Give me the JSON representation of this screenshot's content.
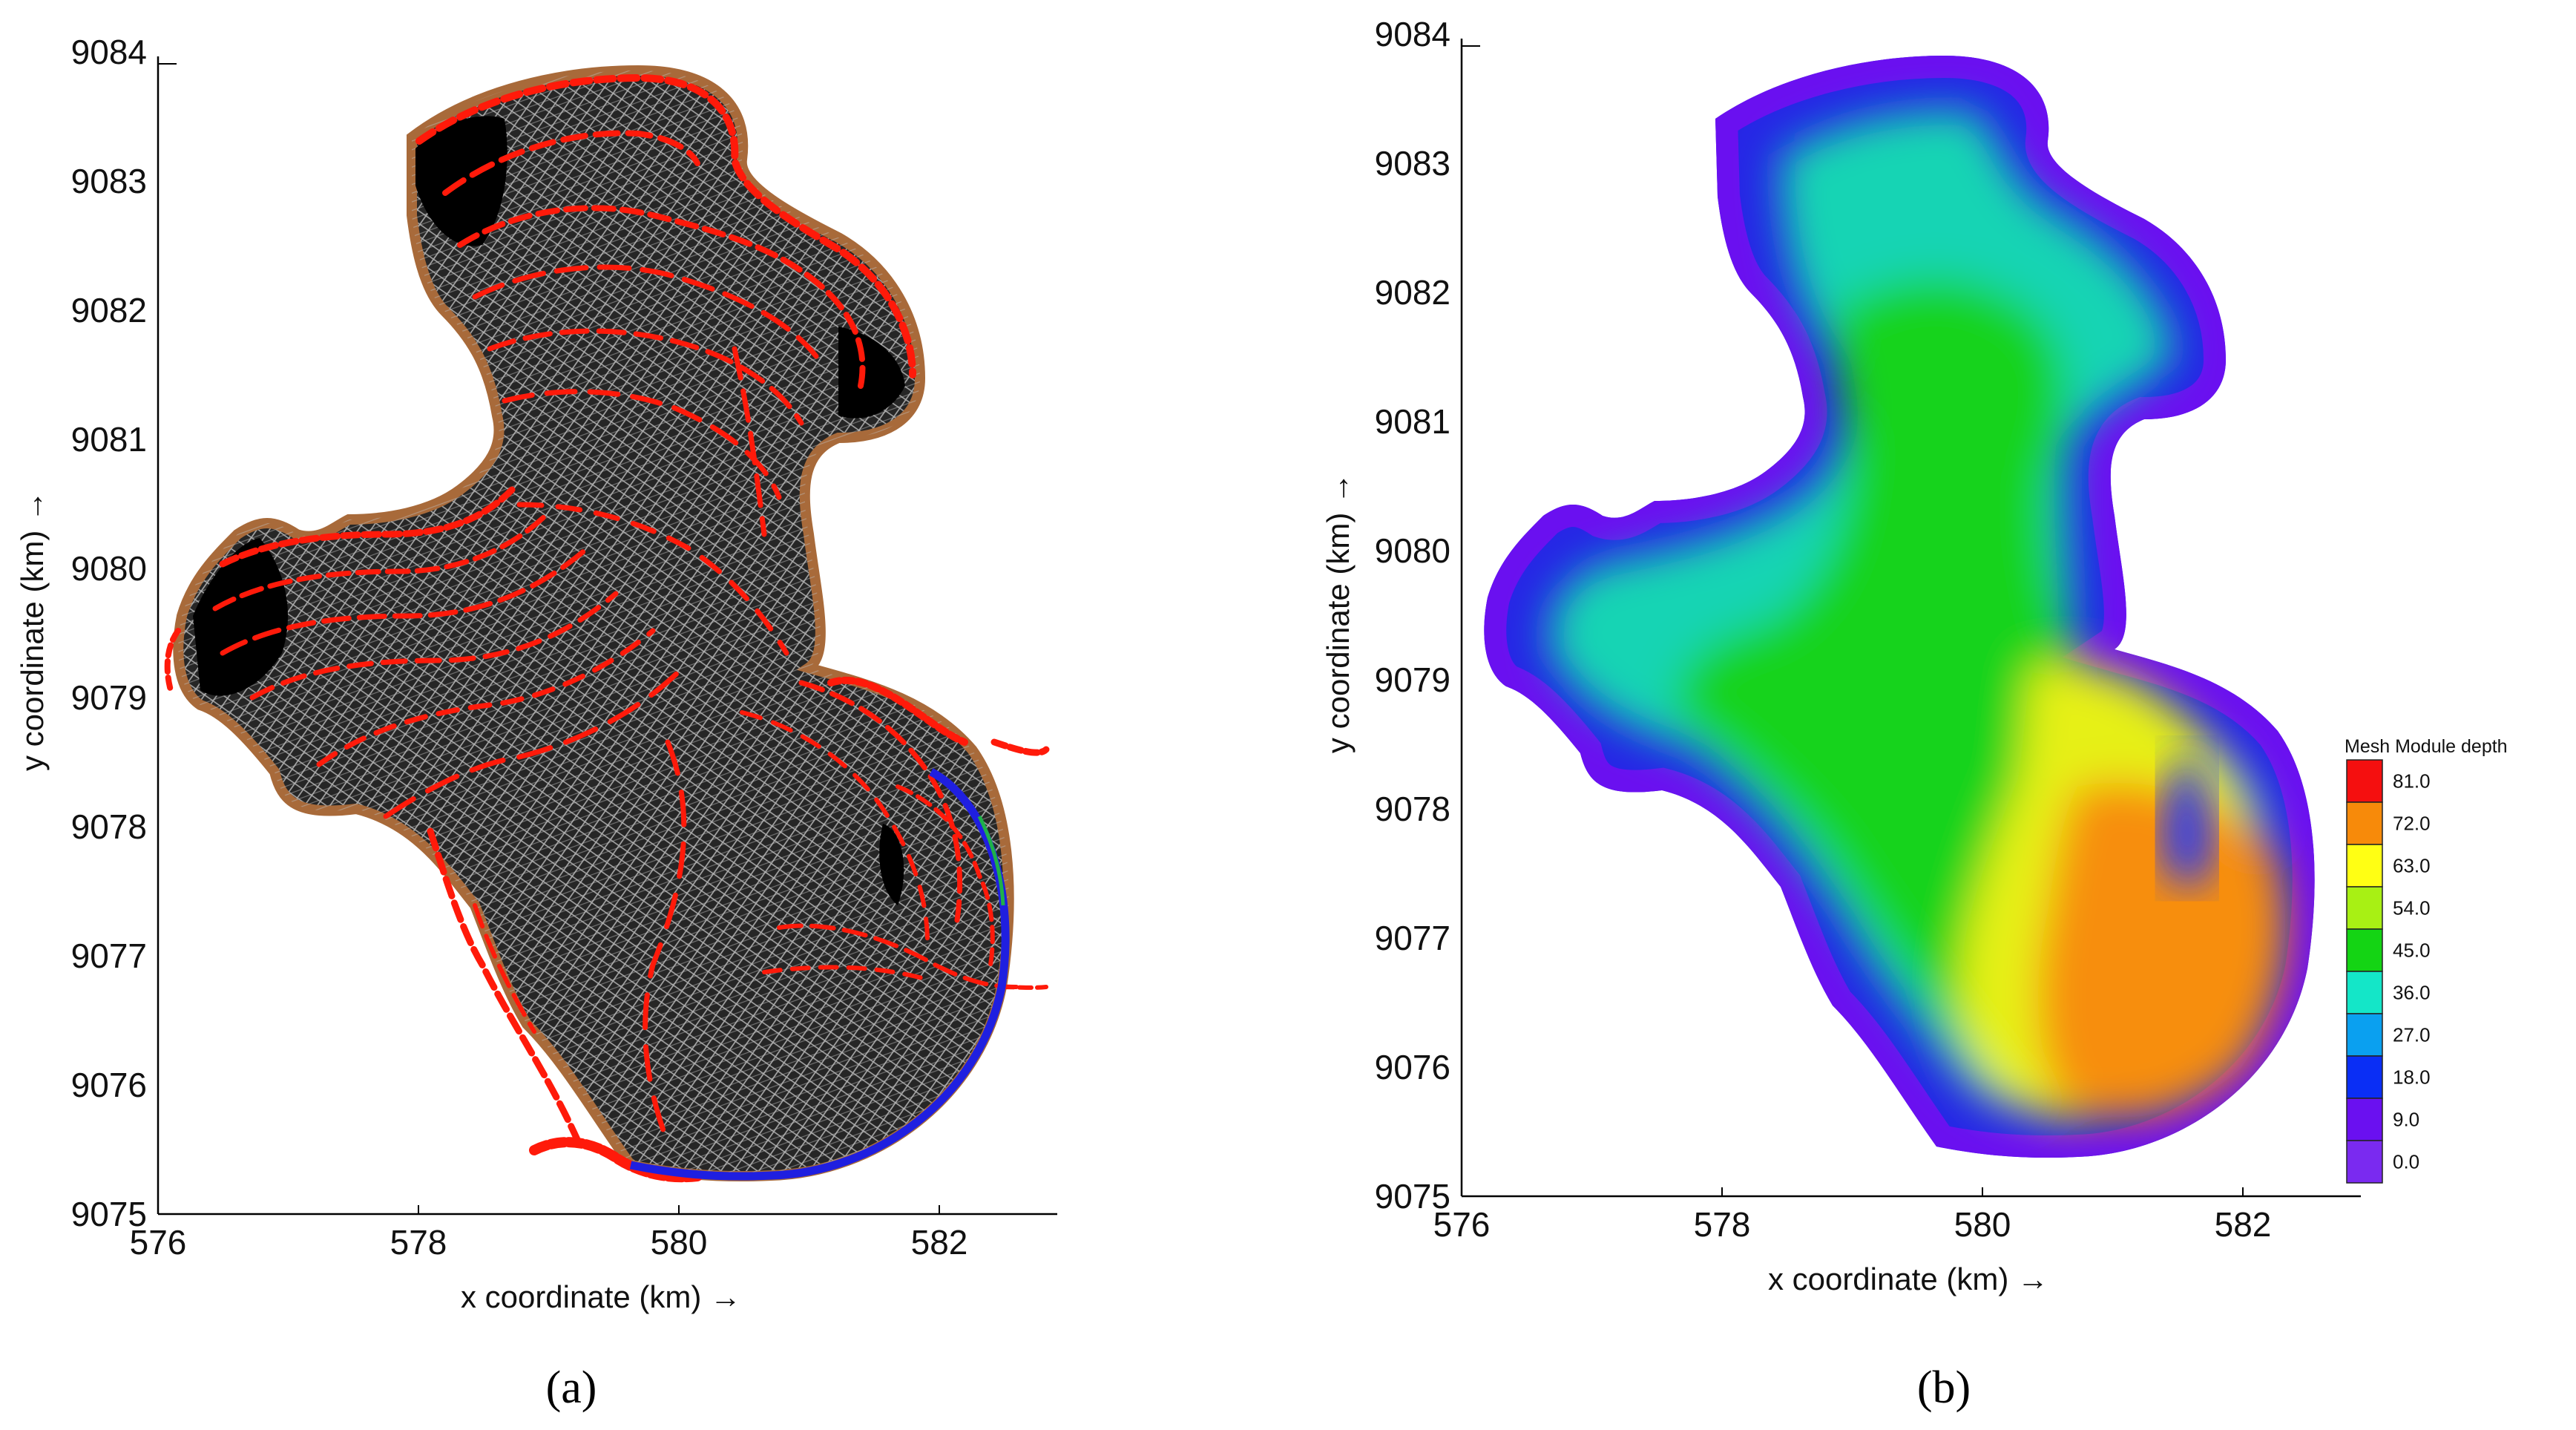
{
  "panel_a": {
    "caption": "(a)",
    "xlabel": "x coordinate (km) →",
    "ylabel": "y coordinate (km) →",
    "xticks": [
      "576",
      "578",
      "580",
      "582"
    ],
    "yticks": [
      "9075",
      "9076",
      "9077",
      "9078",
      "9079",
      "9080",
      "9081",
      "9082",
      "9083",
      "9084"
    ],
    "colors": {
      "mesh": "#2a2a2a",
      "mesh_dense": "#000000",
      "lines": "#ff1a0a",
      "shore": "#a86a3a",
      "open_boundary": "#1f1fe0"
    }
  },
  "panel_b": {
    "caption": "(b)",
    "xlabel": "x coordinate (km) →",
    "ylabel": "y coordinate (km) →",
    "xticks": [
      "576",
      "578",
      "580",
      "582"
    ],
    "yticks": [
      "9075",
      "9076",
      "9077",
      "9078",
      "9079",
      "9080",
      "9081",
      "9082",
      "9083",
      "9084"
    ],
    "legend": {
      "title": "Mesh Module depth",
      "levels": [
        "81.0",
        "72.0",
        "63.0",
        "54.0",
        "45.0",
        "36.0",
        "27.0",
        "18.0",
        "9.0",
        "0.0"
      ],
      "colors": [
        "#f50f0f",
        "#f78a0a",
        "#ffff14",
        "#a8f014",
        "#14d414",
        "#14e6c8",
        "#0aa0f0",
        "#0a2ef5",
        "#6a10f0",
        "#7a2af0"
      ]
    }
  },
  "chart_data": [
    {
      "type": "map",
      "title": "",
      "xlabel": "x coordinate (km)",
      "ylabel": "y coordinate (km)",
      "xlim": [
        576,
        583
      ],
      "ylim": [
        9075,
        9084
      ],
      "content": "computational mesh of the lake (curvilinear grid with refinement lines)"
    },
    {
      "type": "heatmap",
      "title": "",
      "xlabel": "x coordinate (km)",
      "ylabel": "y coordinate (km)",
      "xlim": [
        576,
        583
      ],
      "ylim": [
        9075,
        9084
      ],
      "colorbar_title": "Mesh Module depth",
      "colorbar_levels": [
        0.0,
        9.0,
        18.0,
        27.0,
        36.0,
        45.0,
        54.0,
        63.0,
        72.0,
        81.0
      ]
    }
  ]
}
